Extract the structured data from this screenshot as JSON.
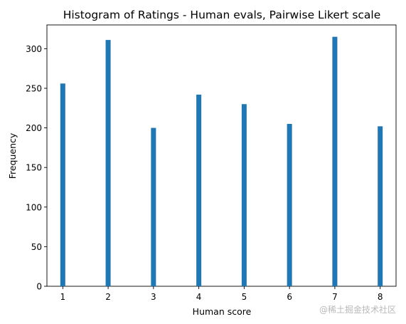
{
  "chart_data": {
    "type": "bar",
    "title": "Histogram of Ratings - Human evals, Pairwise Likert scale",
    "xlabel": "Human score",
    "ylabel": "Frequency",
    "x": [
      1,
      2,
      3,
      4,
      5,
      6,
      7,
      8
    ],
    "values": [
      256,
      311,
      200,
      242,
      230,
      205,
      315,
      202
    ],
    "xlim": [
      0.65,
      8.35
    ],
    "ylim": [
      0,
      330
    ],
    "xticks": [
      "1",
      "2",
      "3",
      "4",
      "5",
      "6",
      "7",
      "8"
    ],
    "yticks": [
      "0",
      "50",
      "100",
      "150",
      "200",
      "250",
      "300"
    ],
    "bar_width_units": 0.11,
    "bar_color": "#1f77b4",
    "grid": false,
    "legend": "none"
  },
  "watermark": "@稀土掘金技术社区"
}
